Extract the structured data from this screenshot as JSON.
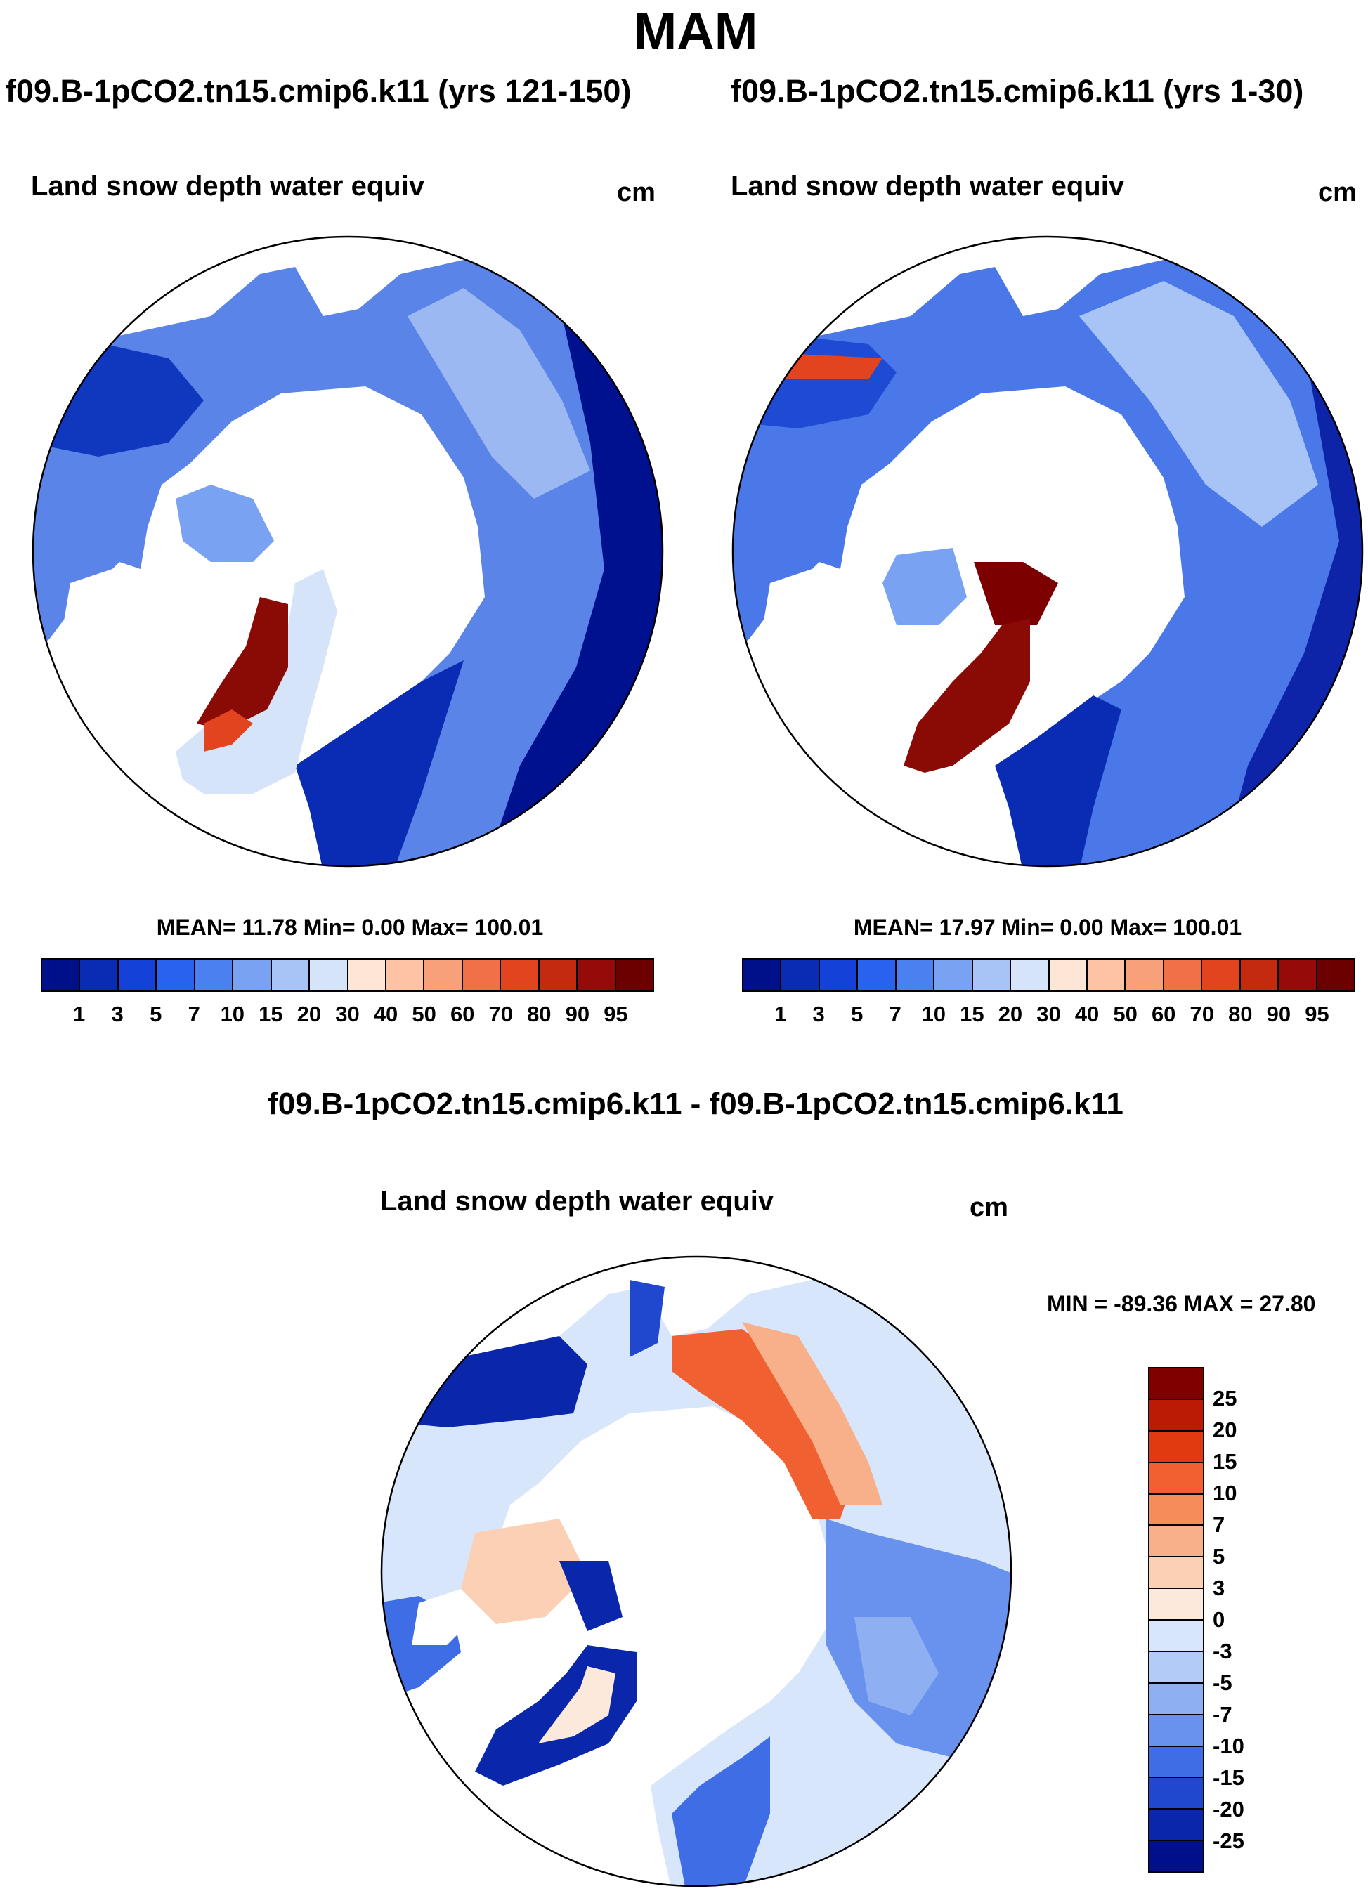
{
  "figure": {
    "season": "MAM",
    "diff_title": "f09.B-1pCO2.tn15.cmip6.k11 - f09.B-1pCO2.tn15.cmip6.k11"
  },
  "panels": [
    {
      "case_title": "f09.B-1pCO2.tn15.cmip6.k11 (yrs 121-150)",
      "variable": "Land snow depth water equiv",
      "units": "cm",
      "stats": "MEAN=  11.78  Min=   0.00  Max= 100.01"
    },
    {
      "case_title": "f09.B-1pCO2.tn15.cmip6.k11 (yrs 1-30)",
      "variable": "Land snow depth water equiv",
      "units": "cm",
      "stats": "MEAN=  17.97  Min=   0.00  Max= 100.01"
    },
    {
      "variable": "Land snow depth water equiv",
      "units": "cm",
      "stats": "MIN = -89.36 MAX =  27.80"
    }
  ],
  "colorbar_main": {
    "labels": [
      "1",
      "3",
      "5",
      "7",
      "10",
      "15",
      "20",
      "30",
      "40",
      "50",
      "60",
      "70",
      "80",
      "90",
      "95"
    ],
    "colors": [
      "#00108a",
      "#0a2cb4",
      "#1442d8",
      "#2a62f0",
      "#4a80f0",
      "#7aa2f2",
      "#a8c4f6",
      "#d6e4fa",
      "#fde6d6",
      "#fcc4a4",
      "#f8a07a",
      "#f27048",
      "#e24420",
      "#c42a10",
      "#960a0a",
      "#6c0000"
    ]
  },
  "colorbar_diff": {
    "labels": [
      "25",
      "20",
      "15",
      "10",
      "7",
      "5",
      "3",
      "0",
      "-3",
      "-5",
      "-7",
      "-10",
      "-15",
      "-20",
      "-25"
    ],
    "colors": [
      "#800000",
      "#bb1a05",
      "#e23a10",
      "#f06030",
      "#f58c5a",
      "#f8b08a",
      "#fbd0b4",
      "#fde8dc",
      "#d8e6fb",
      "#b2ccf7",
      "#8eb0f3",
      "#6892ee",
      "#3e6de6",
      "#1f48cf",
      "#0a26aa",
      "#00108a"
    ]
  },
  "chart_data": {
    "type": "heatmap",
    "title": "MAM",
    "projection": "north polar stereographic",
    "panels": [
      {
        "name": "f09.B-1pCO2.tn15.cmip6.k11 (yrs 121-150)",
        "variable": "Land snow depth water equiv",
        "units": "cm",
        "mean": 11.78,
        "min": 0.0,
        "max": 100.01
      },
      {
        "name": "f09.B-1pCO2.tn15.cmip6.k11 (yrs 1-30)",
        "variable": "Land snow depth water equiv",
        "units": "cm",
        "mean": 17.97,
        "min": 0.0,
        "max": 100.01
      },
      {
        "name": "difference",
        "variable": "Land snow depth water equiv",
        "units": "cm",
        "min": -89.36,
        "max": 27.8
      }
    ],
    "levels_main": [
      1,
      3,
      5,
      7,
      10,
      15,
      20,
      30,
      40,
      50,
      60,
      70,
      80,
      90,
      95
    ],
    "levels_diff": [
      -25,
      -20,
      -15,
      -10,
      -7,
      -5,
      -3,
      0,
      3,
      5,
      7,
      10,
      15,
      20,
      25
    ]
  }
}
